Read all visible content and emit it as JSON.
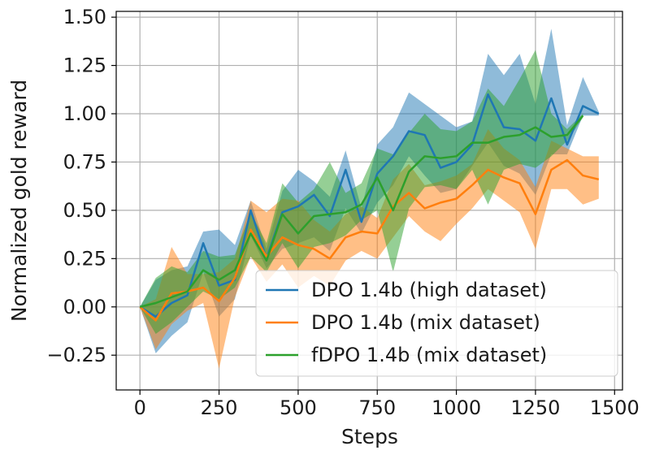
{
  "chart_data": {
    "type": "line",
    "title": "",
    "xlabel": "Steps",
    "ylabel": "Normalized gold reward",
    "xlim": [
      -75,
      1525
    ],
    "ylim": [
      -0.43,
      1.53
    ],
    "xticks": [
      0,
      250,
      500,
      750,
      1000,
      1250,
      1500
    ],
    "yticks": [
      -0.25,
      0,
      0.25,
      0.5,
      0.75,
      1.0,
      1.25,
      1.5
    ],
    "xtick_labels": [
      "0",
      "250",
      "500",
      "750",
      "1000",
      "1250",
      "1500"
    ],
    "ytick_labels": [
      "−0.25",
      "0.00",
      "0.25",
      "0.50",
      "0.75",
      "1.00",
      "1.25",
      "1.50"
    ],
    "grid": true,
    "legend_position": "lower-right",
    "series": [
      {
        "name": "DPO 1.4b (high dataset)",
        "color": "#1f77b4",
        "x": [
          0,
          50,
          100,
          150,
          200,
          250,
          300,
          350,
          400,
          450,
          500,
          550,
          600,
          650,
          700,
          750,
          800,
          850,
          900,
          950,
          1000,
          1050,
          1100,
          1150,
          1200,
          1250,
          1300,
          1350,
          1400,
          1450
        ],
        "mean": [
          0.0,
          -0.05,
          0.02,
          0.06,
          0.33,
          0.11,
          0.14,
          0.5,
          0.25,
          0.49,
          0.52,
          0.58,
          0.47,
          0.71,
          0.44,
          0.69,
          0.78,
          0.91,
          0.89,
          0.72,
          0.75,
          0.84,
          1.1,
          0.93,
          0.92,
          0.86,
          1.08,
          0.84,
          1.04,
          1.0
        ],
        "lower": [
          0.0,
          -0.24,
          -0.15,
          -0.08,
          0.18,
          -0.05,
          0.04,
          0.37,
          0.2,
          0.3,
          0.33,
          0.36,
          0.29,
          0.51,
          0.38,
          0.54,
          0.63,
          0.78,
          0.68,
          0.59,
          0.61,
          0.73,
          0.85,
          0.73,
          0.69,
          0.58,
          0.79,
          0.79,
          0.99,
          0.99
        ],
        "upper": [
          0.0,
          0.14,
          0.19,
          0.21,
          0.39,
          0.4,
          0.32,
          0.55,
          0.3,
          0.6,
          0.71,
          0.65,
          0.57,
          0.81,
          0.51,
          0.84,
          0.93,
          1.11,
          1.05,
          0.99,
          0.93,
          0.96,
          1.31,
          1.2,
          1.31,
          1.05,
          1.44,
          0.94,
          1.19,
          1.01
        ]
      },
      {
        "name": "DPO 1.4b (mix dataset)",
        "color": "#ff7f0e",
        "x": [
          0,
          50,
          100,
          150,
          200,
          250,
          300,
          350,
          400,
          450,
          500,
          550,
          600,
          650,
          700,
          750,
          800,
          850,
          900,
          950,
          1000,
          1050,
          1100,
          1150,
          1200,
          1250,
          1300,
          1350,
          1400,
          1450
        ],
        "mean": [
          0.0,
          -0.07,
          0.07,
          0.08,
          0.1,
          0.03,
          0.15,
          0.4,
          0.26,
          0.36,
          0.32,
          0.3,
          0.25,
          0.36,
          0.39,
          0.38,
          0.52,
          0.59,
          0.51,
          0.54,
          0.56,
          0.63,
          0.71,
          0.67,
          0.64,
          0.48,
          0.71,
          0.76,
          0.68,
          0.66
        ],
        "lower": [
          0.0,
          -0.22,
          -0.09,
          -0.02,
          0.02,
          -0.32,
          0.05,
          0.26,
          0.13,
          0.22,
          0.1,
          0.16,
          0.11,
          0.24,
          0.29,
          0.25,
          0.36,
          0.47,
          0.39,
          0.34,
          0.43,
          0.51,
          0.61,
          0.55,
          0.49,
          0.3,
          0.61,
          0.61,
          0.53,
          0.56
        ],
        "upper": [
          0.0,
          0.04,
          0.31,
          0.17,
          0.17,
          0.18,
          0.25,
          0.55,
          0.49,
          0.56,
          0.55,
          0.45,
          0.39,
          0.48,
          0.52,
          0.46,
          0.66,
          0.74,
          0.63,
          0.65,
          0.68,
          0.74,
          0.92,
          0.82,
          0.76,
          0.62,
          0.86,
          0.82,
          0.78,
          0.78
        ]
      },
      {
        "name": "fDPO 1.4b (mix dataset)",
        "color": "#2ca02c",
        "x": [
          0,
          50,
          100,
          150,
          200,
          250,
          300,
          350,
          400,
          450,
          500,
          550,
          600,
          650,
          700,
          750,
          800,
          850,
          900,
          950,
          1000,
          1050,
          1100,
          1150,
          1200,
          1250,
          1300,
          1350,
          1400
        ],
        "mean": [
          0.0,
          0.02,
          0.05,
          0.08,
          0.19,
          0.14,
          0.19,
          0.38,
          0.24,
          0.48,
          0.38,
          0.47,
          0.48,
          0.49,
          0.53,
          0.67,
          0.5,
          0.7,
          0.78,
          0.77,
          0.78,
          0.85,
          0.85,
          0.88,
          0.89,
          0.93,
          0.88,
          0.89,
          0.99
        ],
        "lower": [
          0.0,
          -0.14,
          -0.08,
          0.0,
          0.08,
          0.04,
          0.1,
          0.26,
          0.18,
          0.33,
          0.2,
          0.31,
          0.33,
          0.37,
          0.45,
          0.5,
          0.18,
          0.51,
          0.62,
          0.63,
          0.61,
          0.71,
          0.53,
          0.71,
          0.74,
          0.72,
          0.78,
          0.86,
          0.98
        ],
        "upper": [
          0.0,
          0.15,
          0.21,
          0.18,
          0.29,
          0.26,
          0.27,
          0.49,
          0.33,
          0.64,
          0.54,
          0.61,
          0.75,
          0.59,
          0.64,
          0.82,
          0.79,
          0.9,
          1.0,
          0.92,
          0.91,
          0.96,
          1.13,
          1.04,
          1.18,
          1.33,
          1.0,
          0.92,
          1.0
        ]
      }
    ]
  }
}
